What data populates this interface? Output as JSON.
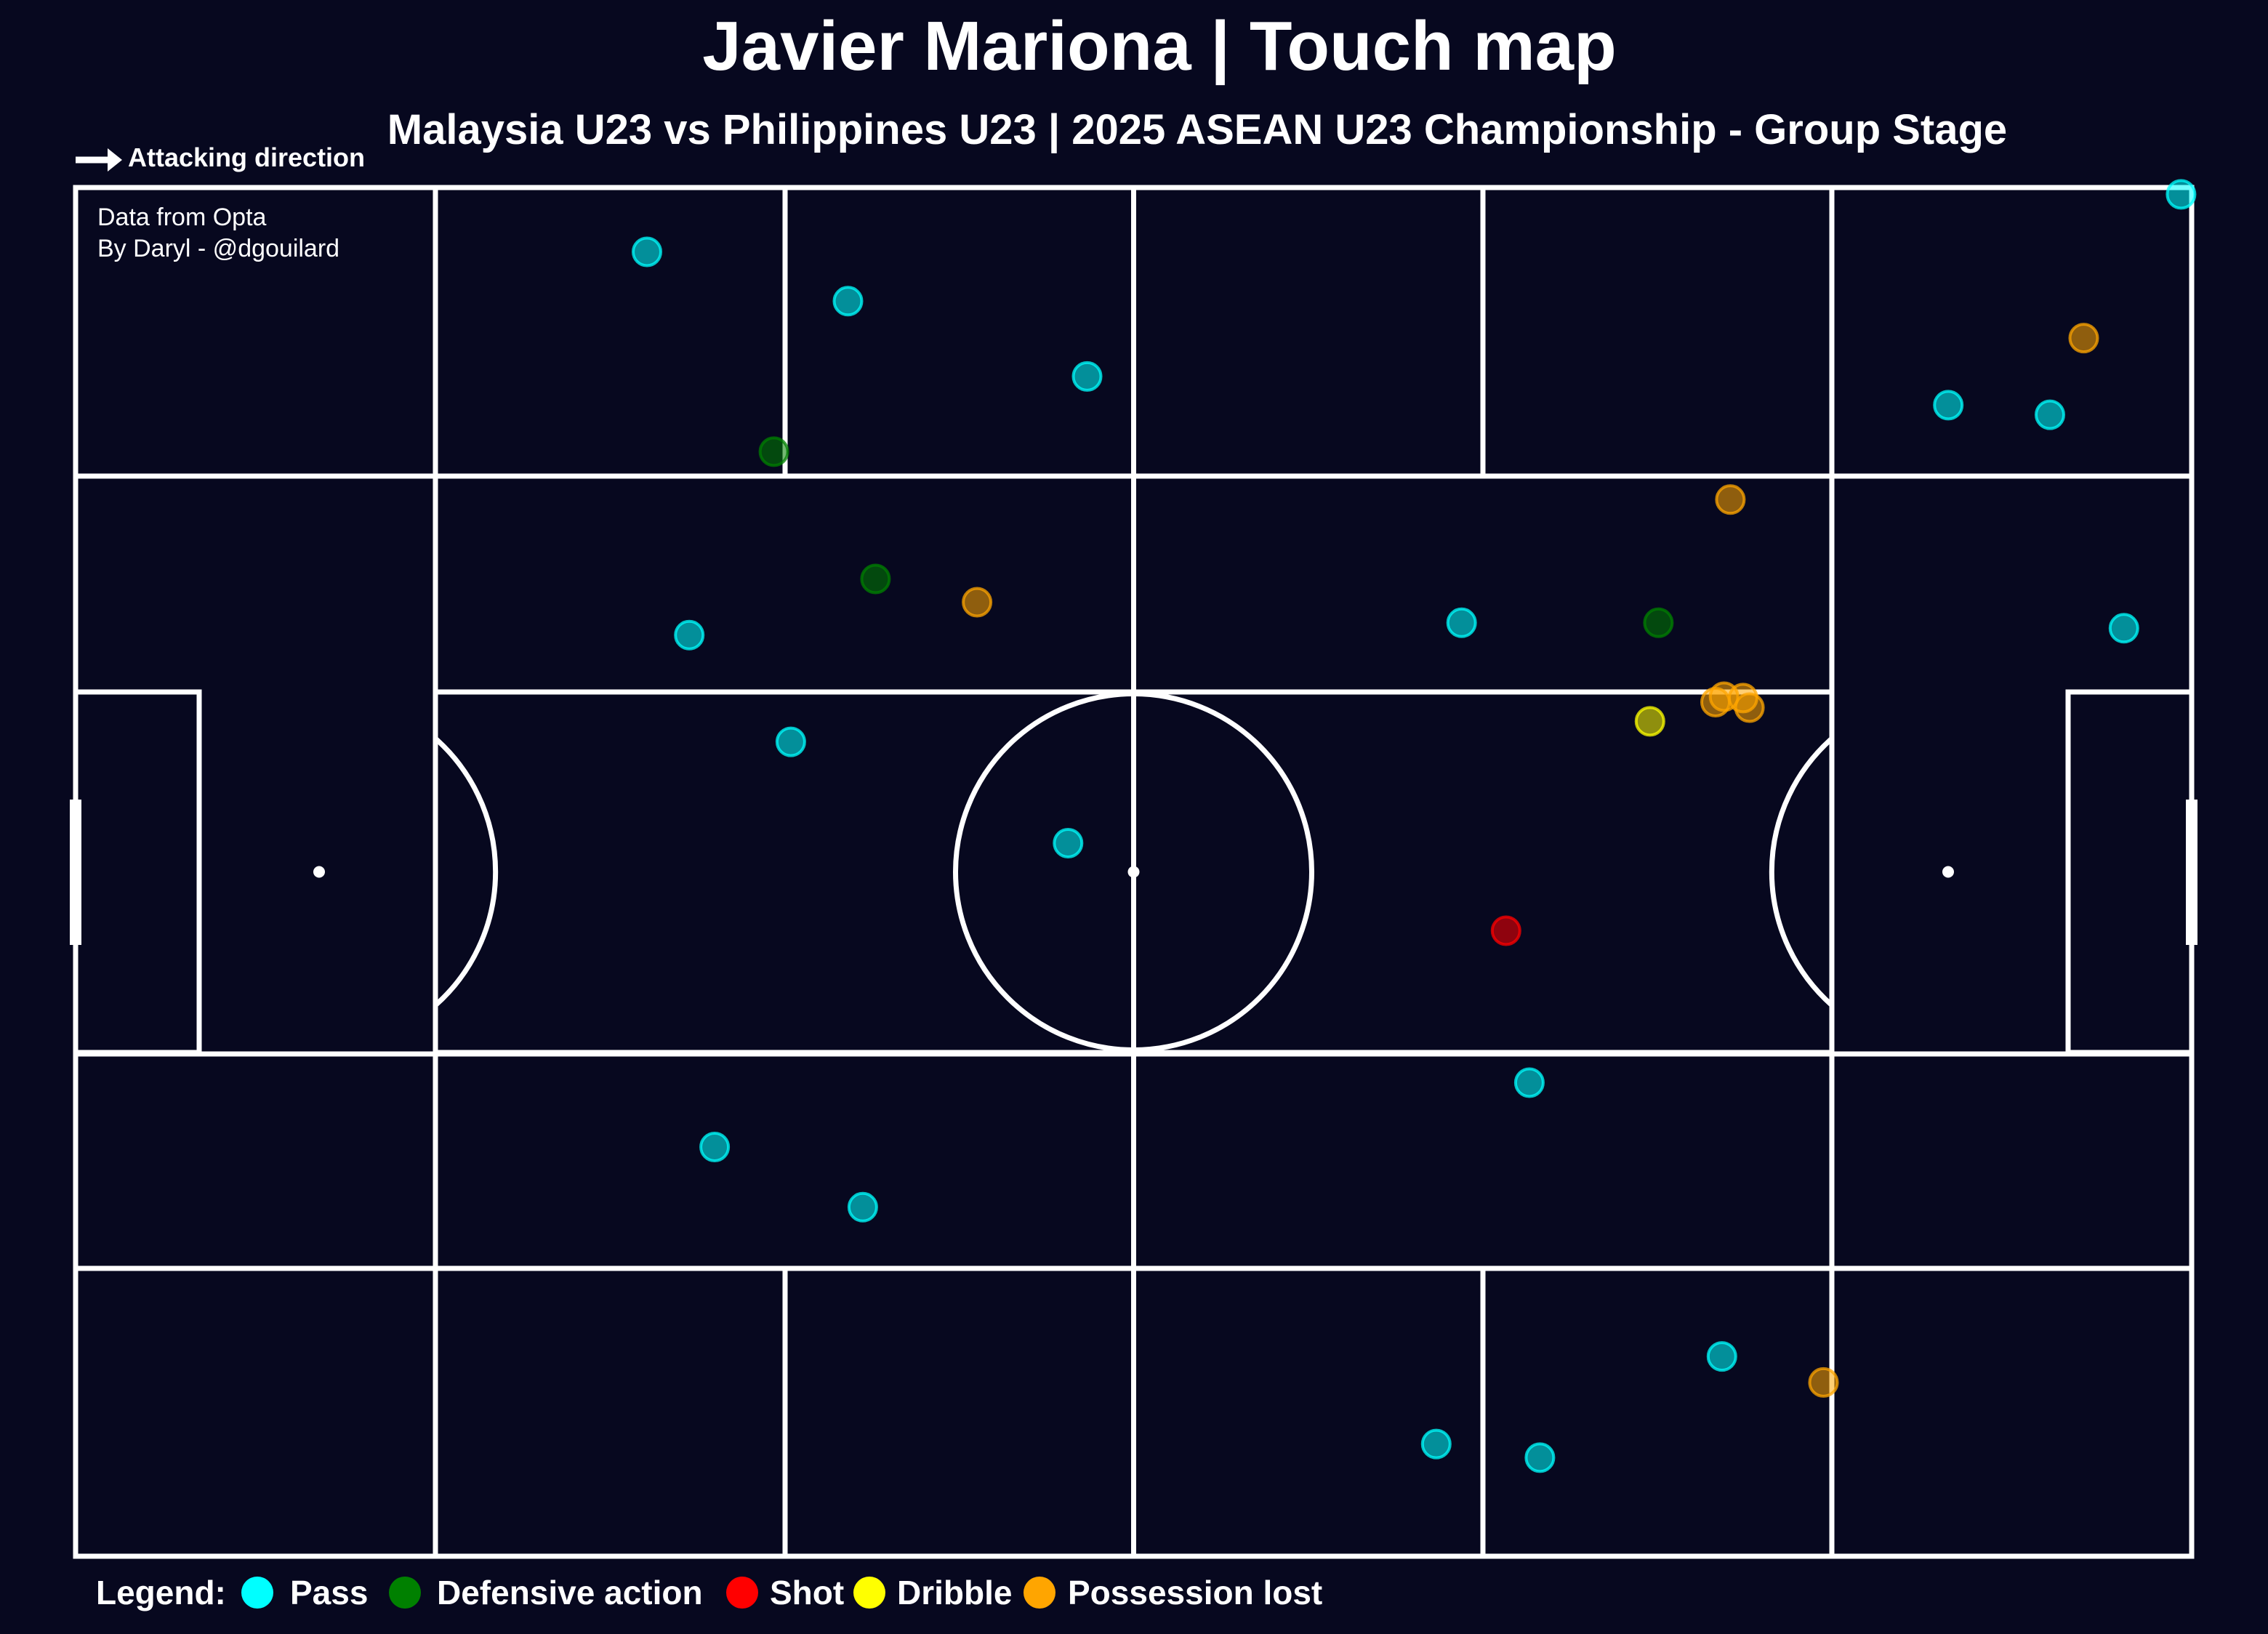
{
  "title": "Javier Mariona | Touch map",
  "subtitle": "Malaysia U23 vs Philippines U23 | 2025 ASEAN U23 Championship - Group Stage",
  "direction_label": "Attacking direction",
  "credits": {
    "line1": "Data from Opta",
    "line2": "By Daryl - @dgouilard"
  },
  "legend": {
    "label": "Legend:",
    "items": [
      {
        "key": "pass",
        "label": "Pass",
        "color": "#00ffff"
      },
      {
        "key": "defensive",
        "label": "Defensive action",
        "color": "#008000"
      },
      {
        "key": "shot",
        "label": "Shot",
        "color": "#ff0000"
      },
      {
        "key": "dribble",
        "label": "Dribble",
        "color": "#ffff00"
      },
      {
        "key": "lost",
        "label": "Possession lost",
        "color": "#ffa500"
      }
    ]
  },
  "chart_data": {
    "type": "scatter",
    "title": "Javier Mariona | Touch map",
    "subtitle": "Malaysia U23 vs Philippines U23 | 2025 ASEAN U23 Championship - Group Stage",
    "xlim": [
      0,
      100
    ],
    "ylim": [
      0,
      100
    ],
    "points": [
      {
        "x": 27.0,
        "y": 95.3,
        "type": "pass"
      },
      {
        "x": 36.5,
        "y": 91.7,
        "type": "pass"
      },
      {
        "x": 47.8,
        "y": 86.2,
        "type": "pass"
      },
      {
        "x": 88.5,
        "y": 84.1,
        "type": "pass"
      },
      {
        "x": 93.3,
        "y": 83.4,
        "type": "pass"
      },
      {
        "x": 29.0,
        "y": 67.3,
        "type": "pass"
      },
      {
        "x": 65.5,
        "y": 68.2,
        "type": "pass"
      },
      {
        "x": 96.8,
        "y": 67.8,
        "type": "pass"
      },
      {
        "x": 33.8,
        "y": 59.5,
        "type": "pass"
      },
      {
        "x": 46.9,
        "y": 52.1,
        "type": "pass"
      },
      {
        "x": 68.7,
        "y": 34.6,
        "type": "pass"
      },
      {
        "x": 30.2,
        "y": 29.9,
        "type": "pass"
      },
      {
        "x": 37.2,
        "y": 25.5,
        "type": "pass"
      },
      {
        "x": 77.8,
        "y": 14.6,
        "type": "pass"
      },
      {
        "x": 64.3,
        "y": 8.2,
        "type": "pass"
      },
      {
        "x": 69.2,
        "y": 7.2,
        "type": "pass"
      },
      {
        "x": 99.5,
        "y": 99.5,
        "type": "pass"
      },
      {
        "x": 33.0,
        "y": 80.7,
        "type": "defensive"
      },
      {
        "x": 37.8,
        "y": 71.4,
        "type": "defensive"
      },
      {
        "x": 74.8,
        "y": 68.2,
        "type": "defensive"
      },
      {
        "x": 67.6,
        "y": 45.7,
        "type": "shot"
      },
      {
        "x": 74.4,
        "y": 61.0,
        "type": "dribble"
      },
      {
        "x": 94.9,
        "y": 89.0,
        "type": "lost"
      },
      {
        "x": 78.2,
        "y": 77.2,
        "type": "lost"
      },
      {
        "x": 42.6,
        "y": 69.7,
        "type": "lost"
      },
      {
        "x": 77.5,
        "y": 62.4,
        "type": "lost"
      },
      {
        "x": 77.9,
        "y": 62.8,
        "type": "lost"
      },
      {
        "x": 78.8,
        "y": 62.7,
        "type": "lost"
      },
      {
        "x": 79.1,
        "y": 62.0,
        "type": "lost"
      },
      {
        "x": 82.6,
        "y": 12.7,
        "type": "lost"
      }
    ]
  }
}
